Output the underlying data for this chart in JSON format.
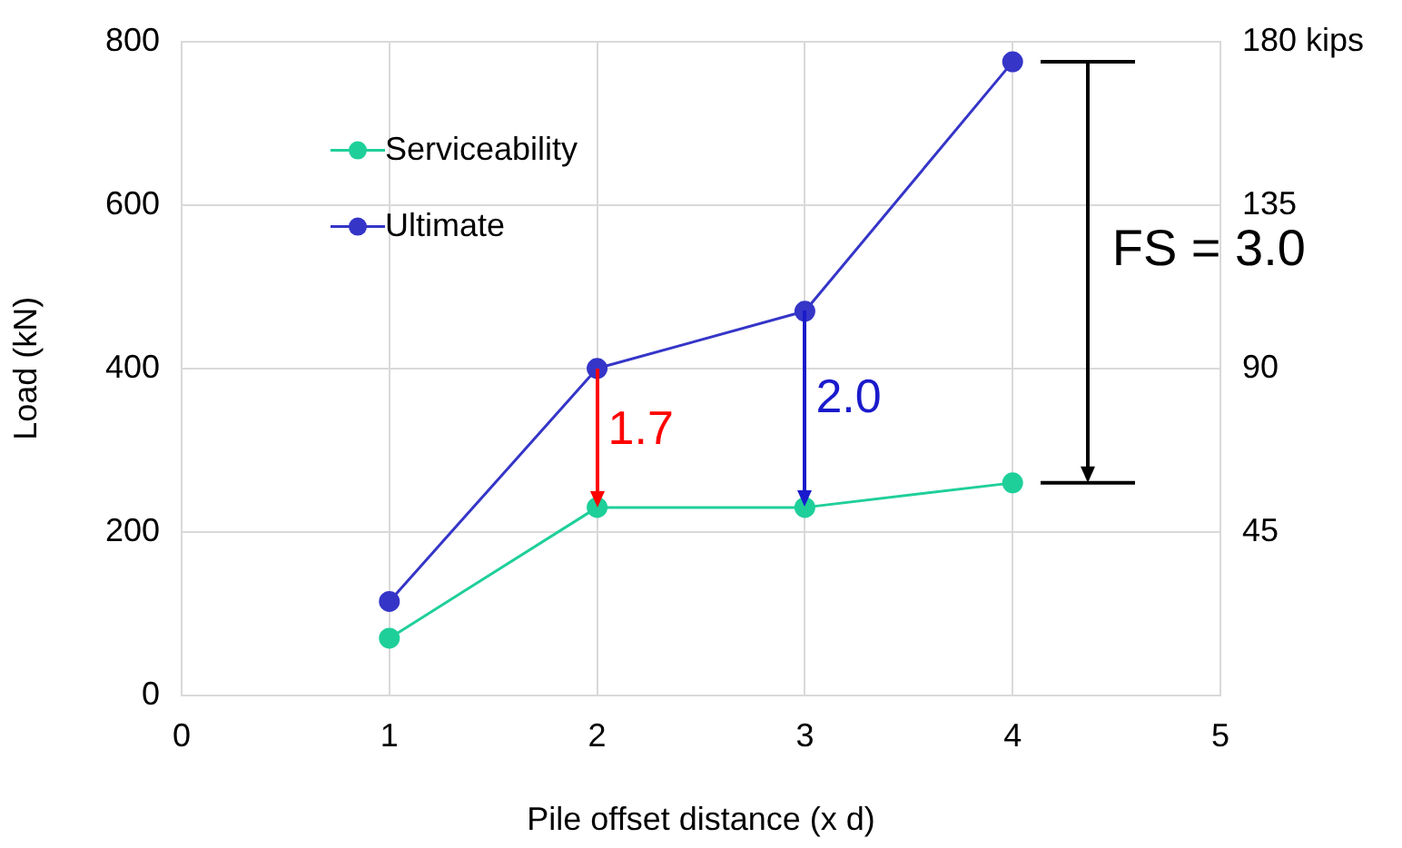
{
  "chart_data": {
    "type": "line",
    "xlabel": "Pile offset distance (x d)",
    "ylabel": "Load (kN)",
    "x": [
      1,
      2,
      3,
      4
    ],
    "series": [
      {
        "name": "Serviceability",
        "color": "#1fcf9a",
        "values": [
          70,
          230,
          230,
          260
        ]
      },
      {
        "name": "Ultimate",
        "color": "#3535c8",
        "values": [
          115,
          400,
          470,
          775
        ]
      }
    ],
    "xlim": [
      0,
      5
    ],
    "xticks": [
      0,
      1,
      2,
      3,
      4,
      5
    ],
    "ylim": [
      0,
      800
    ],
    "yticks": [
      0,
      200,
      400,
      600,
      800
    ],
    "y2lim": [
      0,
      180
    ],
    "y2ticks": [
      45,
      90,
      135,
      {
        "value": 180,
        "label": "180 kips"
      }
    ],
    "annotations": [
      {
        "text": "1.7",
        "x": 2,
        "y": 230
      },
      {
        "text": "2.0",
        "x": 3,
        "y": 230
      },
      "FS = 3.0"
    ],
    "grid": true,
    "legend": "top left",
    "marker": "circle",
    "line_style": "solid"
  }
}
